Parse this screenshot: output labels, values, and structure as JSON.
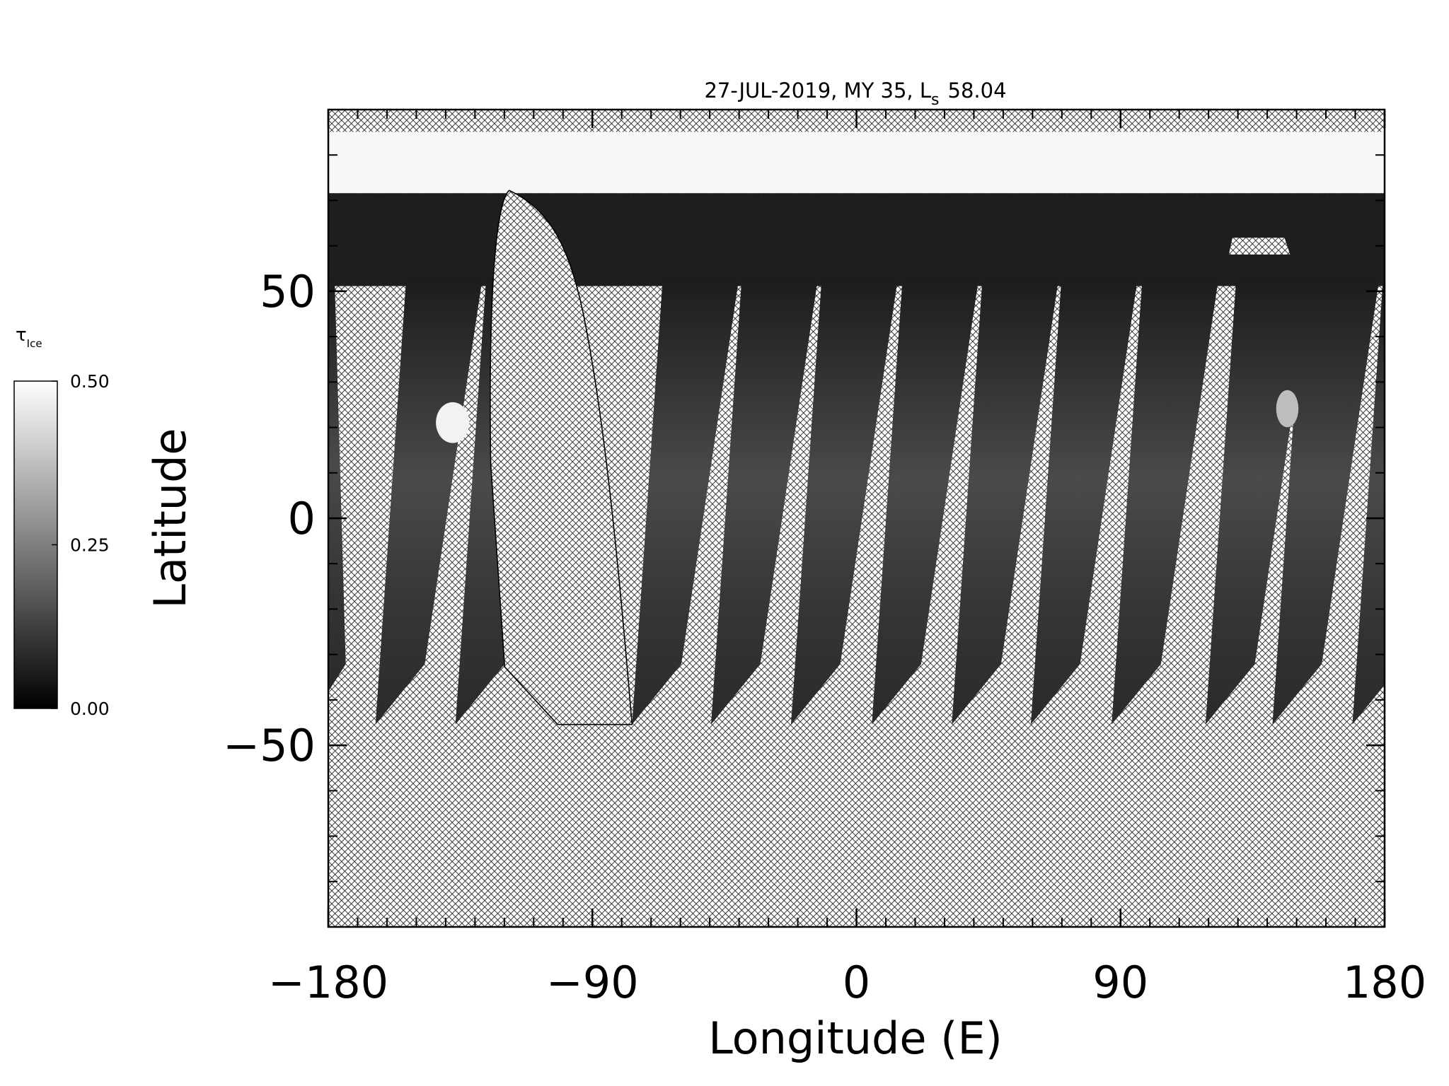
{
  "chart_data": {
    "type": "map",
    "title": "27-JUL-2019, MY 35,  L",
    "title_subscript": "s",
    "title_value": "58.04",
    "xlabel": "Longitude (E)",
    "ylabel": "Latitude",
    "xlim": [
      -180,
      180
    ],
    "ylim": [
      -90,
      90
    ],
    "xticks": [
      {
        "value": -180,
        "label": "−180"
      },
      {
        "value": -90,
        "label": "−90"
      },
      0,
      90,
      180
    ],
    "yticks": [
      {
        "value": -50,
        "label": "−50"
      },
      0,
      50
    ],
    "xminorticks": [
      -170,
      -160,
      -150,
      -140,
      -130,
      -120,
      -110,
      -100,
      -80,
      -70,
      -60,
      -50,
      -40,
      -30,
      -20,
      -10,
      10,
      20,
      30,
      40,
      50,
      60,
      70,
      80,
      100,
      110,
      120,
      130,
      140,
      150,
      160,
      170
    ],
    "yminorticks": [
      -80,
      -70,
      -60,
      -40,
      -30,
      -20,
      -10,
      10,
      20,
      30,
      40,
      60,
      70,
      80
    ],
    "colorbar": {
      "label": "τ",
      "label_subscript": "Ice",
      "lim": [
        0,
        0.5
      ],
      "ticks": [
        {
          "value": 0,
          "label": "0.00"
        },
        {
          "value": 0.25,
          "label": "0.25"
        },
        {
          "value": 0.5,
          "label": "0.50"
        }
      ],
      "colors": [
        "#000000",
        "#ffffff"
      ]
    }
  }
}
